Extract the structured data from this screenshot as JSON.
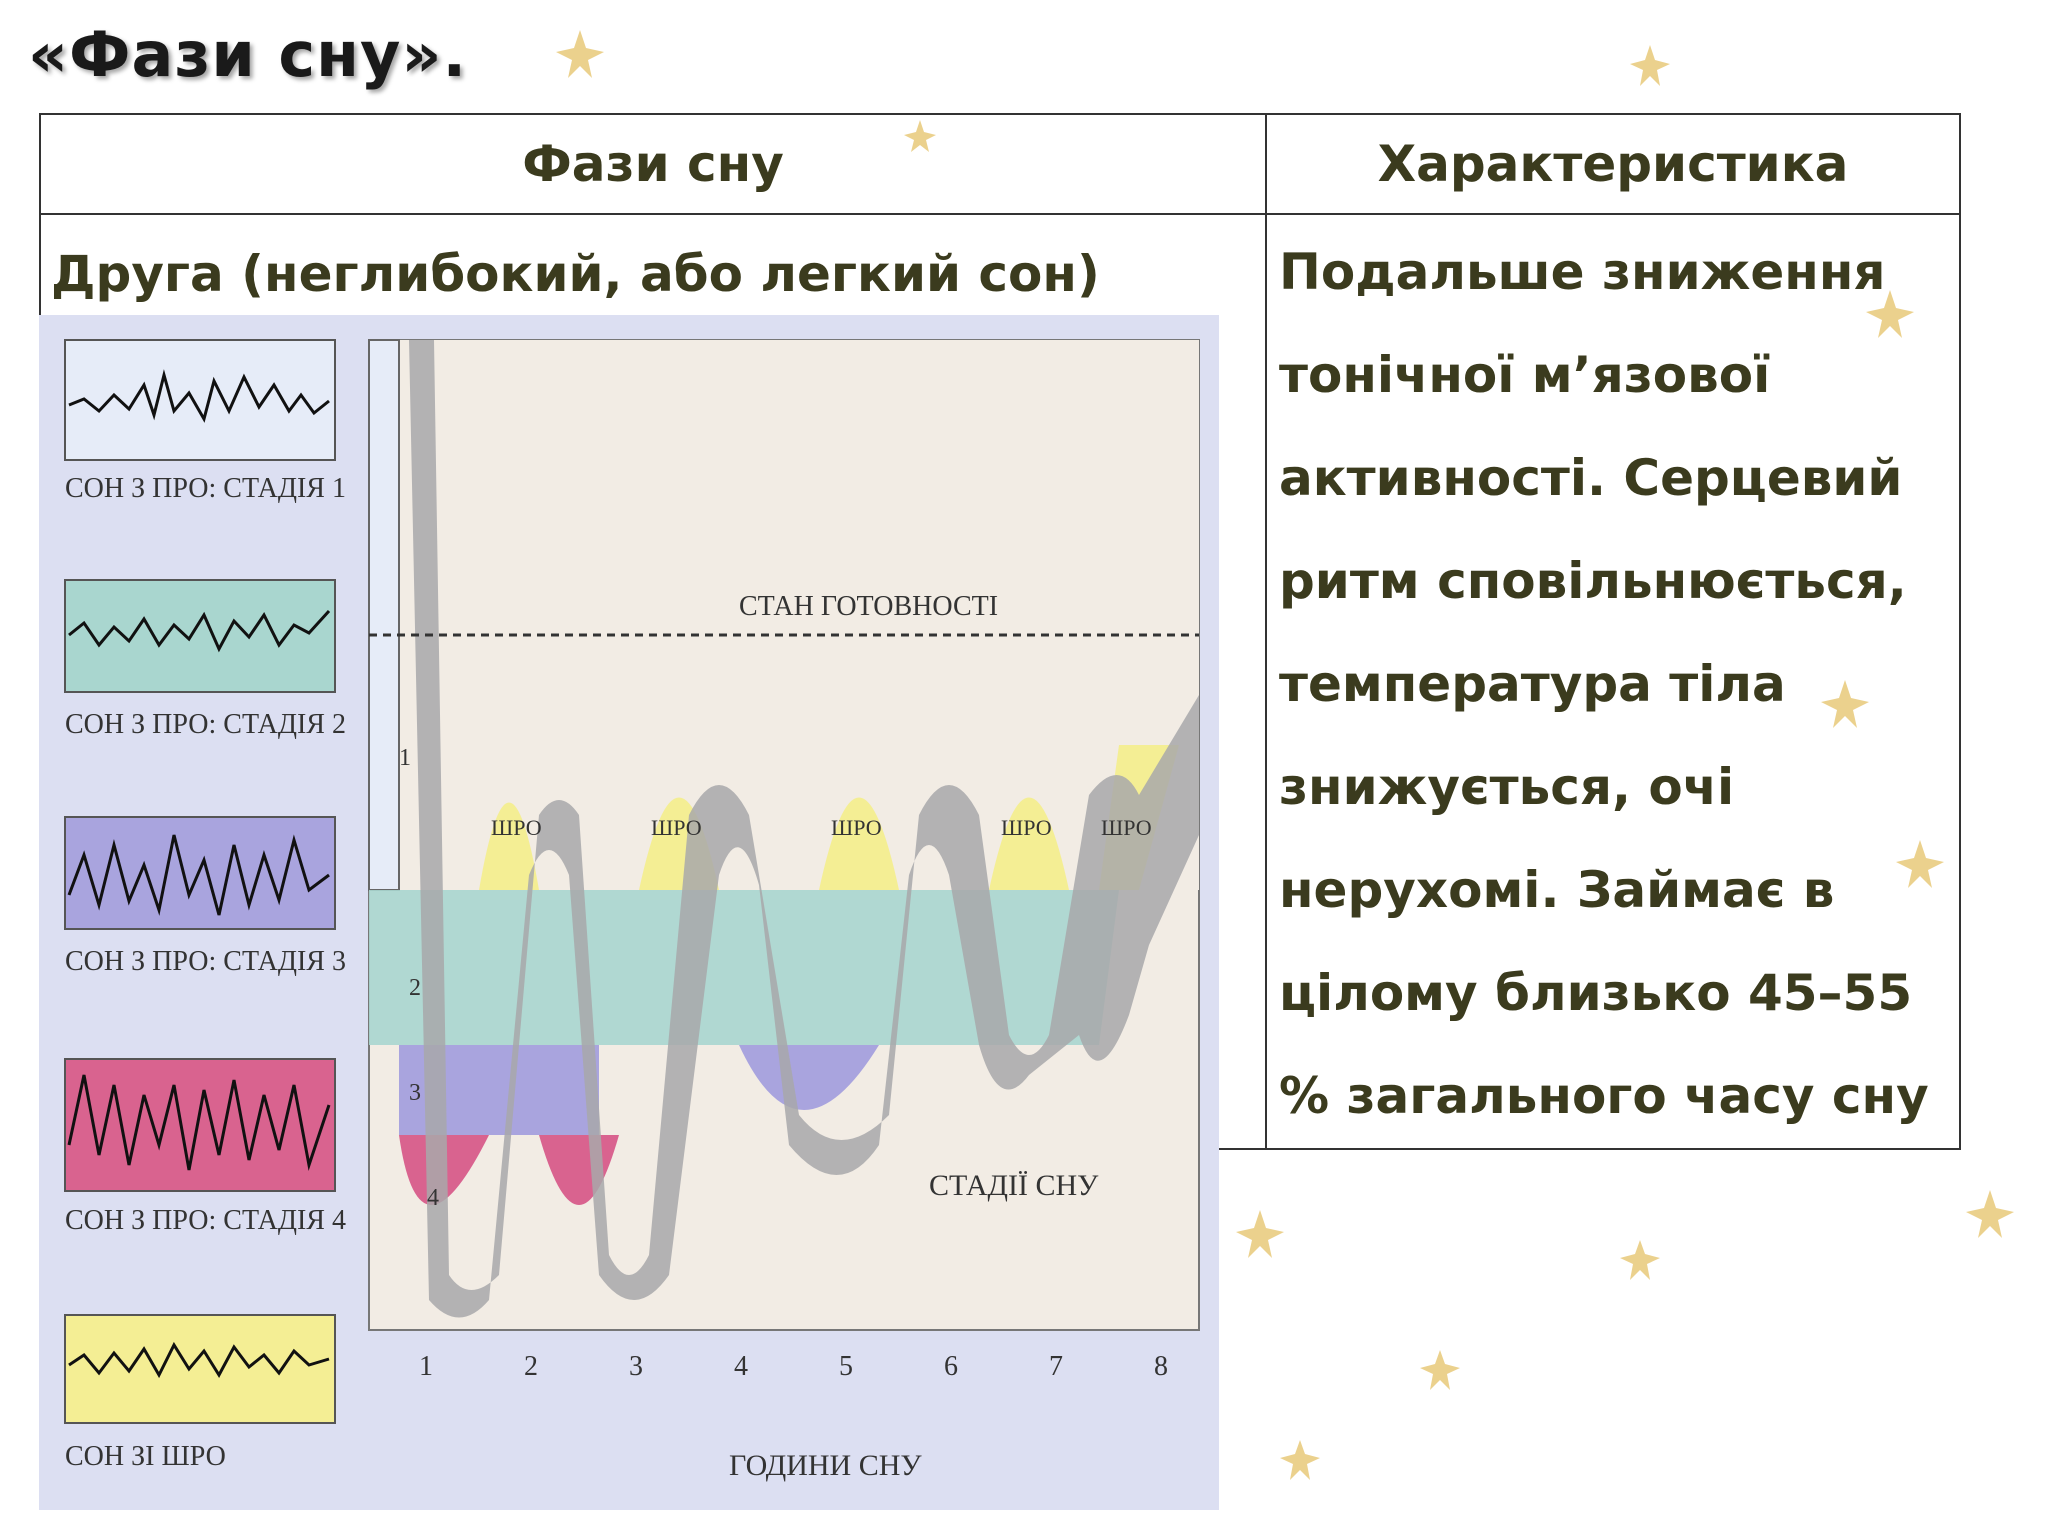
{
  "slide": {
    "title": "«Фази сну»."
  },
  "table": {
    "header_phase": "Фази сну",
    "header_characteristic": "Характеристика",
    "phase_name": "Друга (неглибокий, або легкий сон)",
    "description": "Подальше зниження тонічної м’язової активності. Серцевий ритм сповільнюється, температура тіла знижується, очі нерухомі. Займає в цілому близько 45–55 % загального часу сну"
  },
  "figure": {
    "eeg_labels": [
      "СОН З ПРО: СТАДІЯ 1",
      "СОН З ПРО: СТАДІЯ 2",
      "СОН З ПРО: СТАДІЯ 3",
      "СОН З ПРО: СТАДІЯ 4",
      "СОН ЗІ ШРО"
    ],
    "eeg_colors": [
      "#e6ecf8",
      "#a9d6cf",
      "#a9a4de",
      "#d9638f",
      "#f4ee94"
    ],
    "ready_label": "СТАН ГОТОВНОСТІ",
    "stages_label": "СТАДІЇ СНУ",
    "hours_label": "ГОДИНИ СНУ",
    "hours": [
      "1",
      "2",
      "3",
      "4",
      "5",
      "6",
      "7",
      "8"
    ],
    "rem_label": "ШРО",
    "stage_digits": [
      "1",
      "2",
      "3",
      "4"
    ]
  }
}
